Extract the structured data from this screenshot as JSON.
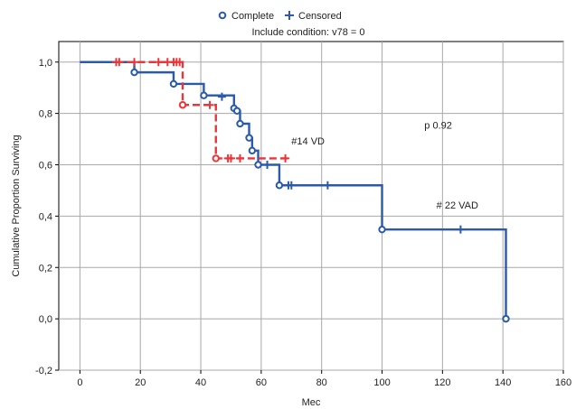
{
  "chart_data": {
    "type": "line",
    "subtitle": "Include condition: v78 = 0",
    "xlabel": "Mec",
    "ylabel": "Cumulative Proportion Surviving",
    "xlim": [
      -7,
      160
    ],
    "ylim": [
      -0.2,
      1.08
    ],
    "x_ticks": [
      0,
      20,
      40,
      60,
      80,
      100,
      120,
      140,
      160
    ],
    "y_ticks": [
      -0.2,
      0.0,
      0.2,
      0.4,
      0.6,
      0.8,
      1.0
    ],
    "x_tick_labels": [
      "0",
      "20",
      "40",
      "60",
      "80",
      "100",
      "120",
      "140",
      "160"
    ],
    "y_tick_labels": [
      "-0,2",
      "0,0",
      "0,2",
      "0,4",
      "0,6",
      "0,8",
      "1,0"
    ],
    "grid": true,
    "legend": {
      "position": "top-center",
      "entries": [
        {
          "label": "Complete",
          "marker": "circle"
        },
        {
          "label": "Censored",
          "marker": "plus"
        }
      ]
    },
    "series": [
      {
        "color": "#2a5aa8",
        "style": "solid",
        "steps": [
          [
            0,
            1.0
          ],
          [
            18,
            0.96
          ],
          [
            31,
            0.915
          ],
          [
            41,
            0.87
          ],
          [
            51,
            0.82
          ],
          [
            52,
            0.81
          ],
          [
            53,
            0.76
          ],
          [
            56,
            0.705
          ],
          [
            57,
            0.655
          ],
          [
            59,
            0.6
          ],
          [
            66,
            0.52
          ],
          [
            100,
            0.348
          ],
          [
            141,
            0.0
          ]
        ],
        "complete": [
          [
            18,
            0.96
          ],
          [
            31,
            0.915
          ],
          [
            41,
            0.87
          ],
          [
            51,
            0.82
          ],
          [
            52,
            0.81
          ],
          [
            53,
            0.76
          ],
          [
            56,
            0.705
          ],
          [
            57,
            0.655
          ],
          [
            59,
            0.6
          ],
          [
            66,
            0.52
          ],
          [
            100,
            0.348
          ],
          [
            141,
            0.0
          ]
        ],
        "censored": [
          [
            47,
            0.865
          ],
          [
            62,
            0.6
          ],
          [
            69,
            0.52
          ],
          [
            70,
            0.52
          ],
          [
            82,
            0.52
          ],
          [
            126,
            0.348
          ]
        ]
      },
      {
        "color": "#e8363a",
        "style": "dashed",
        "steps": [
          [
            12,
            1.0
          ],
          [
            34,
            0.833
          ],
          [
            45,
            0.625
          ],
          [
            69,
            0.625
          ]
        ],
        "complete": [
          [
            34,
            0.833
          ],
          [
            45,
            0.625
          ]
        ],
        "censored": [
          [
            12,
            1.0
          ],
          [
            13,
            1.0
          ],
          [
            18,
            1.0
          ],
          [
            26,
            1.0
          ],
          [
            29,
            1.0
          ],
          [
            31,
            1.0
          ],
          [
            32,
            1.0
          ],
          [
            33,
            1.0
          ],
          [
            43,
            0.833
          ],
          [
            49,
            0.625
          ],
          [
            50,
            0.625
          ],
          [
            53,
            0.625
          ],
          [
            68,
            0.625
          ]
        ]
      }
    ],
    "annotations": [
      {
        "text": "#14 VD",
        "x": 70,
        "y": 0.68
      },
      {
        "text": "p 0.92",
        "x": 114,
        "y": 0.74
      },
      {
        "text": "# 22 VAD",
        "x": 118,
        "y": 0.43
      }
    ]
  }
}
